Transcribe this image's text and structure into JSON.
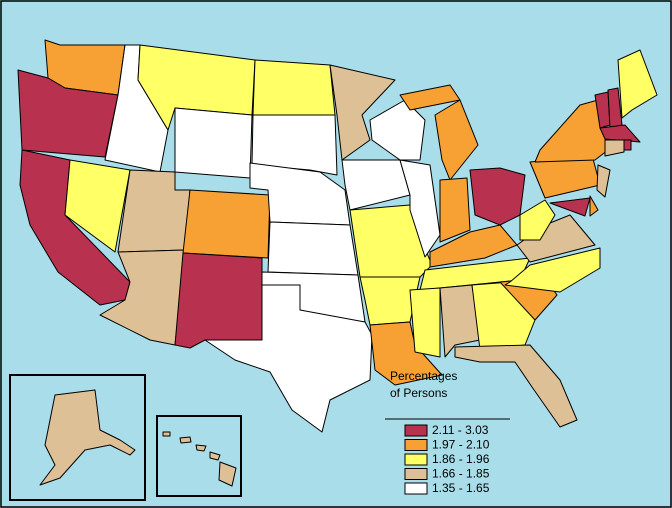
{
  "legend": {
    "title": [
      "Percentages",
      "of Persons"
    ],
    "items": [
      {
        "label": "2.11 - 3.03",
        "color": "#b8324f"
      },
      {
        "label": "1.97 - 2.10",
        "color": "#f7a134"
      },
      {
        "label": "1.86 - 1.96",
        "color": "#ffff66"
      },
      {
        "label": "1.66 - 1.85",
        "color": "#dec096"
      },
      {
        "label": "1.35 - 1.65",
        "color": "#ffffff"
      }
    ]
  }
}
